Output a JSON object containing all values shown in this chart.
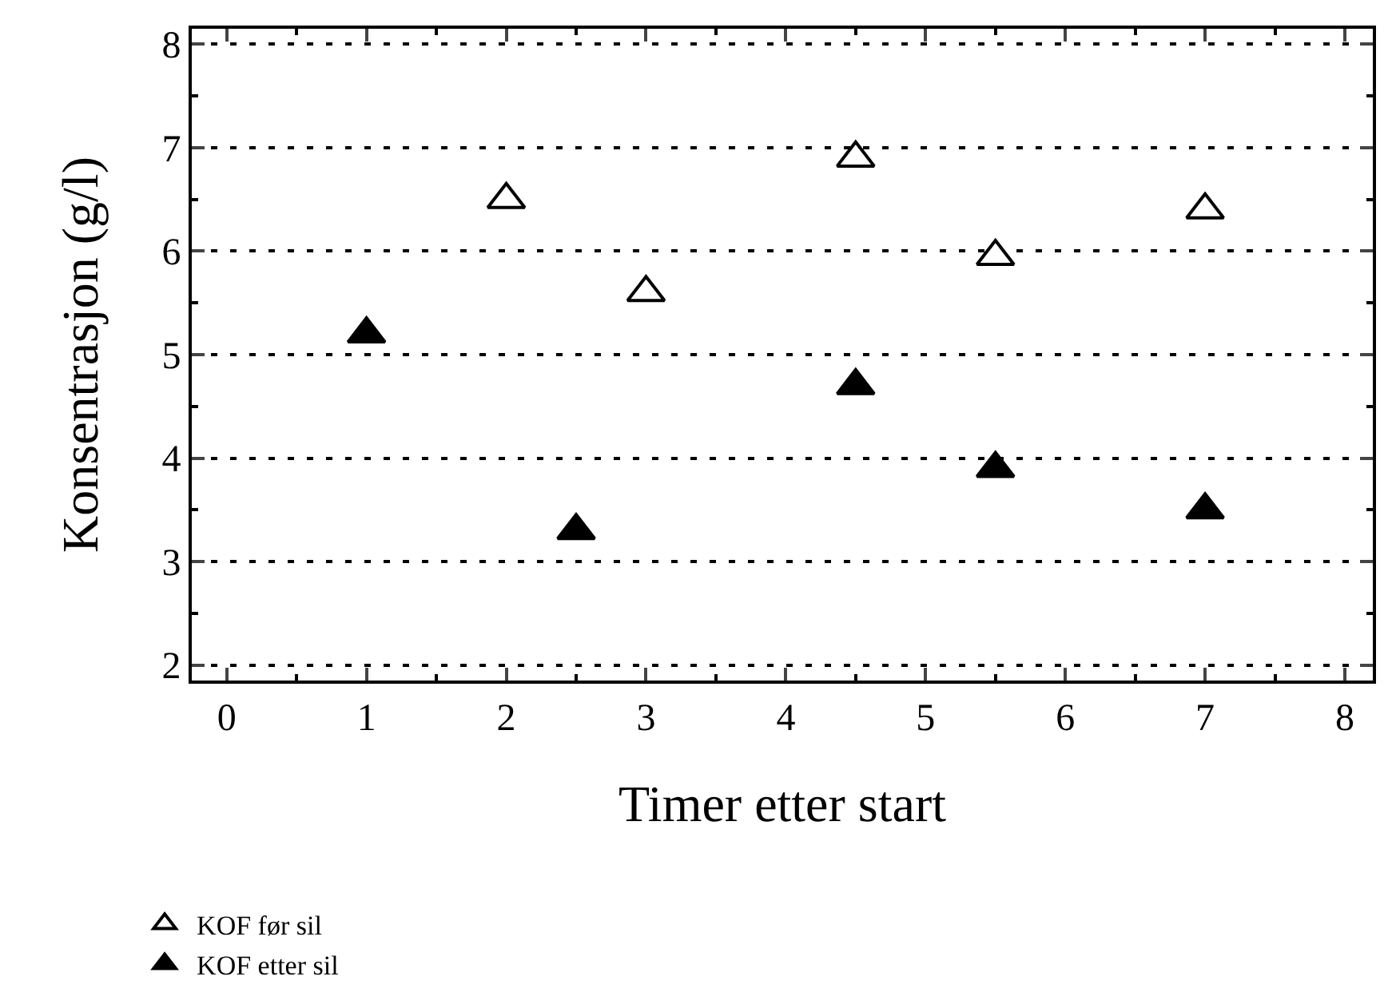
{
  "chart_data": {
    "type": "scatter",
    "xlabel": "Timer etter start",
    "ylabel": "Konsentrasjon (g/l)",
    "xlim": [
      -0.25,
      8.2
    ],
    "ylim": [
      1.85,
      8.15
    ],
    "xticks": [
      0,
      1,
      2,
      3,
      4,
      5,
      6,
      7,
      8
    ],
    "yticks": [
      2,
      3,
      4,
      5,
      6,
      7,
      8
    ],
    "grid": "y",
    "legend": "bottom left",
    "marker": "triangle",
    "series": [
      {
        "name": "KOF før sil",
        "color": "#ffffff",
        "x": [
          2,
          3,
          4.5,
          5.5,
          7
        ],
        "values": [
          6.5,
          5.6,
          6.9,
          5.95,
          6.4
        ]
      },
      {
        "name": "KOF etter sil",
        "color": "#000000",
        "x": [
          1,
          2.5,
          4.5,
          5.5,
          7
        ],
        "values": [
          5.2,
          3.3,
          4.7,
          3.9,
          3.5
        ]
      }
    ]
  }
}
